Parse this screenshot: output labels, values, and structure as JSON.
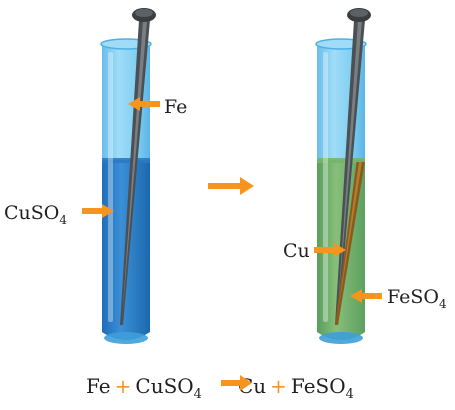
{
  "labels": {
    "fe": "Fe",
    "cuso4_main": "CuSO",
    "cuso4_sub": "4",
    "cu": "Cu",
    "feso4_main": "FeSO",
    "feso4_sub": "4"
  },
  "equation": {
    "reactant1": "Fe",
    "plus": "+",
    "reactant2_main": "CuSO",
    "reactant2_sub": "4",
    "product1": "Cu",
    "product2_main": "FeSO",
    "product2_sub": "4"
  },
  "colors": {
    "arrow_orange": "#f7941d",
    "copper_sulfate_solution": "#2f7fc8",
    "iron_sulfate_solution": "#6fad68",
    "glass_blue": "#5fc0ee",
    "nail_gray": "#555a5e",
    "copper_coating": "#8a5a1c"
  },
  "icons": {
    "process_arrow": "right-arrow-icon",
    "tube_before": "test-tube-icon",
    "tube_after": "test-tube-icon",
    "nail": "iron-nail-icon"
  }
}
